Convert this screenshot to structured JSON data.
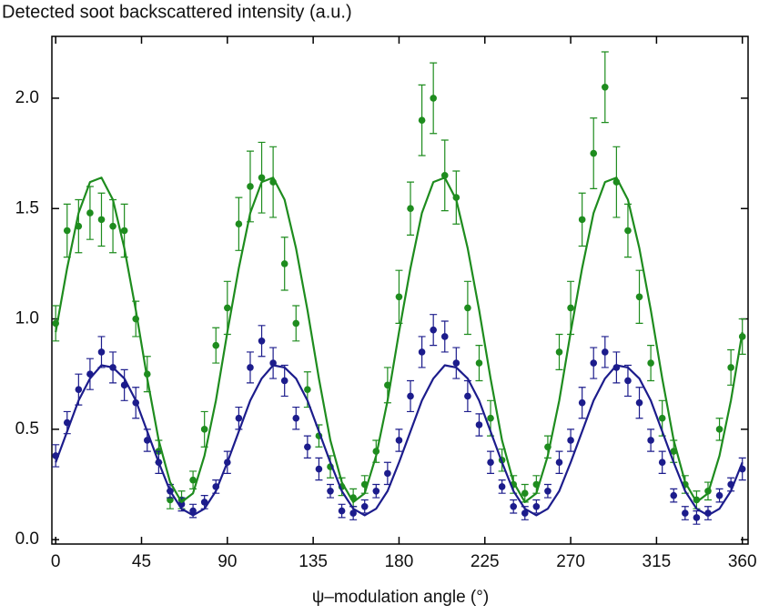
{
  "chart_data": {
    "type": "scatter",
    "title": "Detected soot backscattered intensity (a.u.)",
    "x_label": "ψ–modulation angle (°)",
    "xlim": [
      -2,
      363
    ],
    "ylim": [
      -0.02,
      2.28
    ],
    "xticks": [
      0,
      45,
      90,
      135,
      180,
      225,
      270,
      315,
      360
    ],
    "yticks": [
      {
        "value": 0,
        "label": "0.0"
      },
      0.5,
      {
        "value": 1,
        "label": "1.0"
      },
      1.5,
      {
        "value": 2,
        "label": "2.0"
      }
    ],
    "x": [
      0,
      6,
      12,
      18,
      24,
      30,
      36,
      42,
      48,
      54,
      60,
      66,
      72,
      78,
      84,
      90,
      96,
      102,
      108,
      114,
      120,
      126,
      132,
      138,
      144,
      150,
      156,
      162,
      168,
      174,
      180,
      186,
      192,
      198,
      204,
      210,
      216,
      222,
      228,
      234,
      240,
      246,
      252,
      258,
      264,
      270,
      276,
      282,
      288,
      294,
      300,
      306,
      312,
      318,
      324,
      330,
      336,
      342,
      348,
      354,
      360
    ],
    "series": [
      {
        "style": "points",
        "color": "#1e8c1e",
        "values": [
          0.98,
          1.4,
          1.42,
          1.48,
          1.45,
          1.42,
          1.4,
          1.0,
          0.75,
          0.4,
          0.18,
          0.18,
          0.27,
          0.5,
          0.88,
          1.05,
          1.43,
          1.6,
          1.64,
          1.62,
          1.25,
          0.98,
          0.68,
          0.47,
          0.33,
          0.24,
          0.19,
          0.25,
          0.4,
          0.7,
          1.1,
          1.5,
          1.9,
          2.0,
          1.65,
          1.55,
          1.05,
          0.8,
          0.55,
          0.36,
          0.25,
          0.21,
          0.25,
          0.42,
          0.85,
          1.05,
          1.45,
          1.75,
          2.05,
          1.62,
          1.4,
          1.1,
          0.8,
          0.55,
          0.4,
          0.25,
          0.18,
          0.22,
          0.5,
          0.78,
          0.92
        ],
        "errors": [
          0.08,
          0.12,
          0.12,
          0.12,
          0.12,
          0.12,
          0.12,
          0.08,
          0.08,
          0.05,
          0.04,
          0.04,
          0.04,
          0.08,
          0.08,
          0.12,
          0.12,
          0.16,
          0.16,
          0.16,
          0.12,
          0.08,
          0.08,
          0.05,
          0.05,
          0.04,
          0.04,
          0.04,
          0.05,
          0.08,
          0.12,
          0.12,
          0.16,
          0.16,
          0.16,
          0.12,
          0.12,
          0.08,
          0.08,
          0.05,
          0.04,
          0.04,
          0.04,
          0.05,
          0.08,
          0.12,
          0.12,
          0.16,
          0.16,
          0.16,
          0.12,
          0.12,
          0.08,
          0.08,
          0.05,
          0.04,
          0.04,
          0.04,
          0.05,
          0.08,
          0.08
        ]
      },
      {
        "style": "points",
        "color": "#1c1c8c",
        "values": [
          0.38,
          0.53,
          0.68,
          0.75,
          0.85,
          0.78,
          0.7,
          0.62,
          0.45,
          0.35,
          0.22,
          0.16,
          0.13,
          0.17,
          0.24,
          0.35,
          0.55,
          0.78,
          0.9,
          0.8,
          0.72,
          0.55,
          0.42,
          0.32,
          0.22,
          0.13,
          0.12,
          0.15,
          0.22,
          0.3,
          0.45,
          0.65,
          0.85,
          0.95,
          0.92,
          0.8,
          0.65,
          0.52,
          0.35,
          0.24,
          0.15,
          0.12,
          0.15,
          0.22,
          0.35,
          0.45,
          0.62,
          0.8,
          0.85,
          0.78,
          0.72,
          0.62,
          0.45,
          0.35,
          0.2,
          0.12,
          0.1,
          0.12,
          0.2,
          0.25,
          0.32
        ],
        "errors": [
          0.05,
          0.05,
          0.07,
          0.07,
          0.07,
          0.07,
          0.07,
          0.07,
          0.05,
          0.05,
          0.03,
          0.03,
          0.03,
          0.03,
          0.03,
          0.05,
          0.05,
          0.07,
          0.07,
          0.07,
          0.07,
          0.05,
          0.05,
          0.05,
          0.03,
          0.03,
          0.03,
          0.03,
          0.03,
          0.05,
          0.05,
          0.07,
          0.07,
          0.07,
          0.07,
          0.07,
          0.07,
          0.05,
          0.05,
          0.03,
          0.03,
          0.03,
          0.03,
          0.03,
          0.05,
          0.05,
          0.07,
          0.07,
          0.07,
          0.07,
          0.07,
          0.07,
          0.05,
          0.05,
          0.03,
          0.03,
          0.03,
          0.03,
          0.03,
          0.03,
          0.05
        ]
      },
      {
        "style": "line",
        "color": "#1e8c1e",
        "values": [
          0.94,
          1.23,
          1.48,
          1.62,
          1.64,
          1.54,
          1.32,
          1.04,
          0.73,
          0.45,
          0.26,
          0.17,
          0.21,
          0.38,
          0.63,
          0.94,
          1.23,
          1.48,
          1.62,
          1.64,
          1.54,
          1.32,
          1.04,
          0.73,
          0.45,
          0.26,
          0.17,
          0.21,
          0.38,
          0.63,
          0.94,
          1.23,
          1.48,
          1.62,
          1.64,
          1.54,
          1.32,
          1.04,
          0.73,
          0.45,
          0.26,
          0.17,
          0.21,
          0.38,
          0.63,
          0.94,
          1.23,
          1.48,
          1.62,
          1.64,
          1.54,
          1.32,
          1.04,
          0.73,
          0.45,
          0.26,
          0.17,
          0.21,
          0.38,
          0.63,
          0.94
        ]
      },
      {
        "style": "line",
        "color": "#1c1c8c",
        "values": [
          0.35,
          0.49,
          0.63,
          0.73,
          0.79,
          0.78,
          0.73,
          0.63,
          0.49,
          0.35,
          0.22,
          0.14,
          0.11,
          0.14,
          0.22,
          0.35,
          0.49,
          0.63,
          0.73,
          0.79,
          0.78,
          0.73,
          0.63,
          0.49,
          0.35,
          0.22,
          0.14,
          0.11,
          0.14,
          0.22,
          0.35,
          0.49,
          0.63,
          0.73,
          0.79,
          0.78,
          0.73,
          0.63,
          0.49,
          0.35,
          0.22,
          0.14,
          0.11,
          0.14,
          0.22,
          0.35,
          0.49,
          0.63,
          0.73,
          0.79,
          0.78,
          0.73,
          0.63,
          0.49,
          0.35,
          0.22,
          0.14,
          0.11,
          0.14,
          0.22,
          0.35
        ]
      }
    ]
  }
}
